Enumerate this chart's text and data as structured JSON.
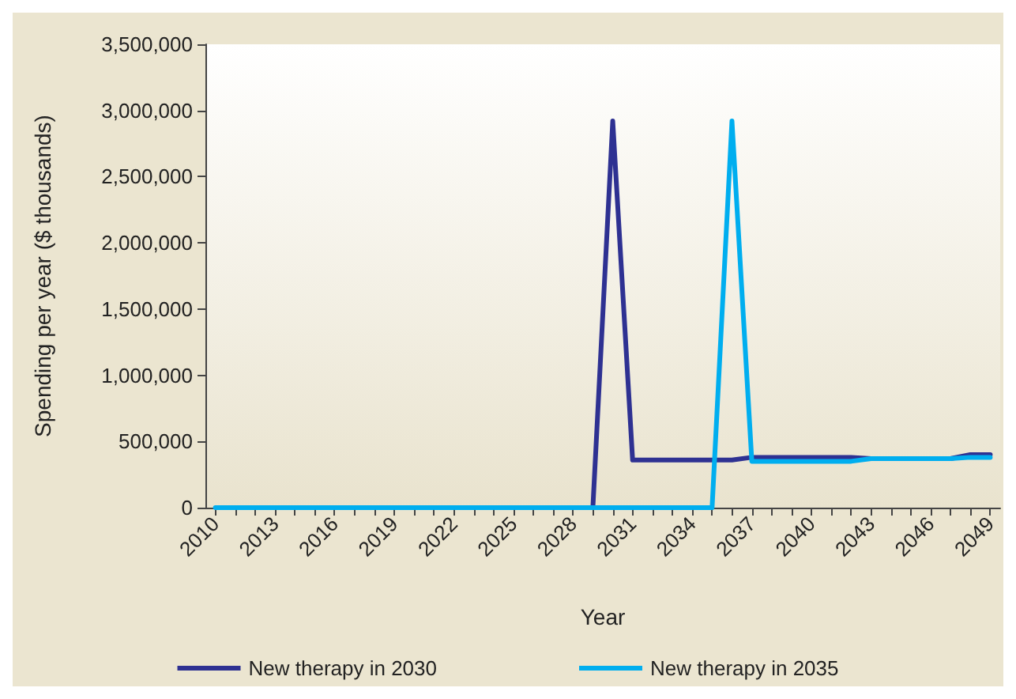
{
  "chart_data": {
    "type": "line",
    "xlabel": "Year",
    "ylabel": "Spending per year ($ thousands)",
    "categories": [
      "2010",
      null,
      null,
      "2013",
      null,
      null,
      "2016",
      null,
      null,
      "2019",
      null,
      null,
      "2022",
      null,
      null,
      "2025",
      null,
      null,
      "2028",
      null,
      null,
      "2031",
      null,
      null,
      "2034",
      null,
      null,
      "2037",
      null,
      null,
      "2040",
      null,
      null,
      "2043",
      null,
      null,
      "2046",
      null,
      null,
      "2049"
    ],
    "series": [
      {
        "name": "New therapy in 2030",
        "color": "#2e3192",
        "values": [
          null,
          null,
          null,
          null,
          null,
          null,
          null,
          null,
          null,
          null,
          null,
          null,
          null,
          null,
          null,
          null,
          null,
          null,
          null,
          0,
          2920000,
          360000,
          360000,
          360000,
          360000,
          360000,
          360000,
          380000,
          380000,
          380000,
          380000,
          380000,
          380000,
          370000,
          null,
          null,
          null,
          370000,
          400000,
          400000
        ]
      },
      {
        "name": "New therapy in 2035",
        "color": "#00aeef",
        "values": [
          0,
          0,
          0,
          0,
          0,
          0,
          0,
          0,
          0,
          0,
          0,
          0,
          0,
          0,
          0,
          0,
          0,
          0,
          0,
          0,
          0,
          0,
          0,
          0,
          0,
          0,
          2920000,
          350000,
          350000,
          350000,
          350000,
          350000,
          350000,
          370000,
          370000,
          370000,
          370000,
          370000,
          380000,
          380000
        ]
      }
    ],
    "ylim": [
      0,
      3500000
    ],
    "yticks": [
      0,
      {
        "value": 500000,
        "label": "500,000"
      },
      {
        "value": 1000000,
        "label": "1,000,000"
      },
      {
        "value": 1500000,
        "label": "1,500,000"
      },
      {
        "value": 2000000,
        "label": "2,000,000"
      },
      {
        "value": 2500000,
        "label": "2,500,000"
      },
      {
        "value": 3000000,
        "label": "3,000,000"
      },
      {
        "value": 3500000,
        "label": "3,500,000"
      }
    ],
    "grid": false,
    "legend": "bottom",
    "marker": "none",
    "line_style": "solid"
  }
}
